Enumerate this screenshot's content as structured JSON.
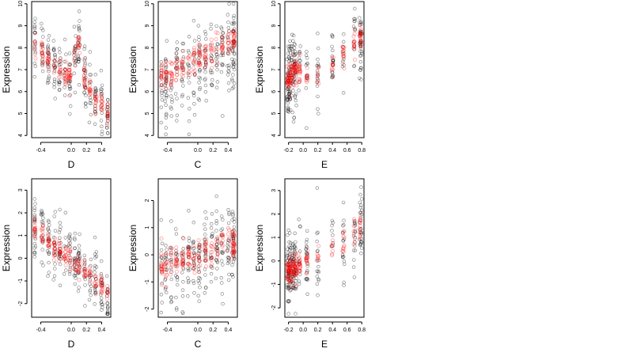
{
  "figure": {
    "panel_count": 6
  },
  "colors": {
    "observed": "#000000",
    "fitted": "#ff0000",
    "background": "#ffffff"
  },
  "chart_data": [
    {
      "type": "scatter",
      "title": "",
      "xlabel": "D",
      "ylabel": "Expression",
      "xlim": [
        -0.52,
        0.52
      ],
      "ylim": [
        3.9,
        10.1
      ],
      "xticks": [
        -0.4,
        0.0,
        0.2,
        0.4
      ],
      "xtick_labels": [
        "-0.4",
        "0.0",
        "0.2",
        "0.4"
      ],
      "yticks": [
        4,
        5,
        6,
        7,
        8,
        9,
        10
      ],
      "ytick_labels": [
        "4",
        "5",
        "6",
        "7",
        "8",
        "9",
        "10"
      ],
      "grid": false,
      "legend": "none",
      "pattern": {
        "x_min": -0.48,
        "x_max": 0.48,
        "x_clusters": [
          -0.48,
          -0.38,
          -0.3,
          -0.22,
          -0.15,
          -0.08,
          -0.02,
          0.05,
          0.1,
          0.18,
          0.25,
          0.32,
          0.4,
          0.48
        ],
        "spread": 0.9,
        "n": 240
      },
      "series": [
        {
          "role": "observed",
          "x": [
            -0.48,
            -0.38,
            -0.3,
            -0.22,
            -0.15,
            -0.08,
            0.0,
            0.1,
            0.2,
            0.3,
            0.4,
            0.48
          ],
          "values": [
            8.1,
            7.8,
            7.5,
            7.2,
            7.0,
            6.8,
            6.6,
            8.3,
            6.2,
            5.8,
            5.3,
            5.0
          ]
        },
        {
          "role": "fitted",
          "x": [
            -0.48,
            -0.38,
            -0.3,
            -0.22,
            -0.15,
            -0.08,
            0.0,
            0.1,
            0.2,
            0.3,
            0.4,
            0.48
          ],
          "values": [
            8.2,
            7.8,
            7.4,
            7.2,
            7.0,
            6.8,
            6.6,
            8.4,
            6.1,
            5.7,
            5.3,
            5.0
          ]
        }
      ]
    },
    {
      "type": "scatter",
      "title": "",
      "xlabel": "C",
      "ylabel": "Expression",
      "xlim": [
        -0.52,
        0.52
      ],
      "ylim": [
        3.9,
        10.1
      ],
      "xticks": [
        -0.4,
        0.0,
        0.2,
        0.4
      ],
      "xtick_labels": [
        "-0.4",
        "0.0",
        "0.2",
        "0.4"
      ],
      "yticks": [
        4,
        5,
        6,
        7,
        8,
        9,
        10
      ],
      "ytick_labels": [
        "4",
        "5",
        "6",
        "7",
        "8",
        "9",
        "10"
      ],
      "grid": false,
      "legend": "none",
      "pattern": {
        "x_min": -0.48,
        "x_max": 0.48,
        "x_clusters": [
          -0.48,
          -0.42,
          -0.35,
          -0.28,
          -0.2,
          -0.12,
          -0.05,
          0.02,
          0.1,
          0.18,
          0.25,
          0.32,
          0.4,
          0.46,
          0.48
        ],
        "spread": 1.2,
        "n": 260
      },
      "series": [
        {
          "role": "observed",
          "x": [
            -0.48,
            -0.3,
            -0.1,
            0.1,
            0.3,
            0.48
          ],
          "values": [
            6.2,
            6.6,
            7.0,
            7.3,
            7.6,
            7.8
          ]
        },
        {
          "role": "fitted",
          "x": [
            -0.48,
            -0.3,
            -0.1,
            0.1,
            0.3,
            0.48
          ],
          "values": [
            6.6,
            7.0,
            7.3,
            7.7,
            8.0,
            8.4
          ]
        }
      ]
    },
    {
      "type": "scatter",
      "title": "",
      "xlabel": "E",
      "ylabel": "Expression",
      "xlim": [
        -0.25,
        0.83
      ],
      "ylim": [
        3.9,
        10.1
      ],
      "xticks": [
        -0.2,
        0.0,
        0.2,
        0.4,
        0.6,
        0.8
      ],
      "xtick_labels": [
        "-0.2",
        "0.0",
        "0.2",
        "0.4",
        "0.6",
        "0.8"
      ],
      "yticks": [
        4,
        5,
        6,
        7,
        8,
        9,
        10
      ],
      "ytick_labels": [
        "4",
        "5",
        "6",
        "7",
        "8",
        "9",
        "10"
      ],
      "grid": false,
      "legend": "none",
      "pattern": {
        "x_min": -0.22,
        "x_max": 0.8,
        "x_clusters": [
          -0.21,
          -0.2,
          -0.19,
          -0.17,
          -0.15,
          -0.13,
          -0.11,
          -0.1,
          -0.05,
          0.05,
          0.2,
          0.4,
          0.55,
          0.7,
          0.78,
          0.79
        ],
        "spread": 1.0,
        "n": 240
      },
      "series": [
        {
          "role": "observed",
          "x": [
            -0.21,
            -0.15,
            -0.1,
            0.1,
            0.3,
            0.5,
            0.7,
            0.79
          ],
          "values": [
            6.5,
            6.8,
            7.0,
            6.8,
            7.0,
            7.5,
            8.0,
            8.3
          ]
        },
        {
          "role": "fitted",
          "x": [
            -0.21,
            -0.15,
            -0.1,
            0.1,
            0.3,
            0.5,
            0.7,
            0.79
          ],
          "values": [
            6.5,
            6.8,
            7.0,
            6.6,
            7.0,
            7.6,
            8.1,
            8.4
          ]
        }
      ]
    },
    {
      "type": "scatter",
      "title": "",
      "xlabel": "D",
      "ylabel": "Expression",
      "xlim": [
        -0.52,
        0.52
      ],
      "ylim": [
        -2.6,
        3.5
      ],
      "xticks": [
        -0.4,
        0.0,
        0.2,
        0.4
      ],
      "xtick_labels": [
        "-0.4",
        "0.0",
        "0.2",
        "0.4"
      ],
      "yticks": [
        -2,
        -1,
        0,
        1,
        2,
        3
      ],
      "ytick_labels": [
        "-2",
        "-1",
        "0",
        "1",
        "2",
        "3"
      ],
      "grid": false,
      "legend": "none",
      "pattern": {
        "x_min": -0.48,
        "x_max": 0.48,
        "x_clusters": [
          -0.48,
          -0.38,
          -0.3,
          -0.22,
          -0.15,
          -0.08,
          -0.02,
          0.05,
          0.1,
          0.18,
          0.25,
          0.32,
          0.4,
          0.48
        ],
        "spread": 0.9,
        "n": 240
      },
      "series": [
        {
          "role": "observed",
          "x": [
            -0.48,
            -0.3,
            -0.1,
            0.1,
            0.3,
            0.48
          ],
          "values": [
            1.3,
            0.8,
            0.2,
            -0.4,
            -0.9,
            -1.5
          ]
        },
        {
          "role": "fitted",
          "x": [
            -0.48,
            -0.3,
            -0.1,
            0.1,
            0.3,
            0.48
          ],
          "values": [
            1.3,
            0.7,
            0.2,
            -0.4,
            -0.9,
            -1.5
          ]
        }
      ]
    },
    {
      "type": "scatter",
      "title": "",
      "xlabel": "C",
      "ylabel": "Expression",
      "xlim": [
        -0.52,
        0.52
      ],
      "ylim": [
        -2.3,
        2.8
      ],
      "xticks": [
        -0.4,
        0.0,
        0.2,
        0.4
      ],
      "xtick_labels": [
        "-0.4",
        "0.0",
        "0.2",
        "0.4"
      ],
      "yticks": [
        -2,
        -1,
        0,
        1,
        2
      ],
      "ytick_labels": [
        "-2",
        "-1",
        "0",
        "1",
        "2"
      ],
      "grid": false,
      "legend": "none",
      "pattern": {
        "x_min": -0.48,
        "x_max": 0.48,
        "x_clusters": [
          -0.48,
          -0.42,
          -0.35,
          -0.28,
          -0.2,
          -0.12,
          -0.05,
          0.02,
          0.1,
          0.18,
          0.25,
          0.32,
          0.4,
          0.46,
          0.48
        ],
        "spread": 1.0,
        "n": 260
      },
      "series": [
        {
          "role": "observed",
          "x": [
            -0.48,
            -0.3,
            -0.1,
            0.1,
            0.3,
            0.48
          ],
          "values": [
            -0.4,
            -0.3,
            -0.1,
            0.1,
            0.2,
            0.4
          ]
        },
        {
          "role": "fitted",
          "x": [
            -0.48,
            -0.3,
            -0.1,
            0.1,
            0.3,
            0.48
          ],
          "values": [
            -0.4,
            -0.25,
            -0.1,
            0.1,
            0.25,
            0.4
          ]
        }
      ]
    },
    {
      "type": "scatter",
      "title": "",
      "xlabel": "E",
      "ylabel": "Expression",
      "xlim": [
        -0.25,
        0.83
      ],
      "ylim": [
        -2.4,
        3.5
      ],
      "xticks": [
        -0.2,
        0.0,
        0.2,
        0.4,
        0.6,
        0.8
      ],
      "xtick_labels": [
        "-0.2",
        "0.0",
        "0.2",
        "0.4",
        "0.6",
        "0.8"
      ],
      "yticks": [
        -2,
        -1,
        0,
        1,
        2,
        3
      ],
      "ytick_labels": [
        "-2",
        "-1",
        "0",
        "1",
        "2",
        "3"
      ],
      "grid": false,
      "legend": "none",
      "pattern": {
        "x_min": -0.22,
        "x_max": 0.8,
        "x_clusters": [
          -0.21,
          -0.2,
          -0.19,
          -0.17,
          -0.15,
          -0.13,
          -0.11,
          -0.1,
          -0.05,
          0.05,
          0.2,
          0.4,
          0.55,
          0.7,
          0.78,
          0.79
        ],
        "spread": 1.0,
        "n": 240
      },
      "series": [
        {
          "role": "observed",
          "x": [
            -0.21,
            -0.15,
            -0.1,
            0.1,
            0.3,
            0.5,
            0.7,
            0.79
          ],
          "values": [
            -0.4,
            -0.3,
            -0.2,
            0.1,
            0.4,
            0.7,
            1.1,
            1.4
          ]
        },
        {
          "role": "fitted",
          "x": [
            -0.21,
            -0.15,
            -0.1,
            0.1,
            0.3,
            0.5,
            0.7,
            0.79
          ],
          "values": [
            -0.4,
            -0.3,
            -0.2,
            0.1,
            0.4,
            0.7,
            1.1,
            1.4
          ]
        }
      ]
    }
  ]
}
